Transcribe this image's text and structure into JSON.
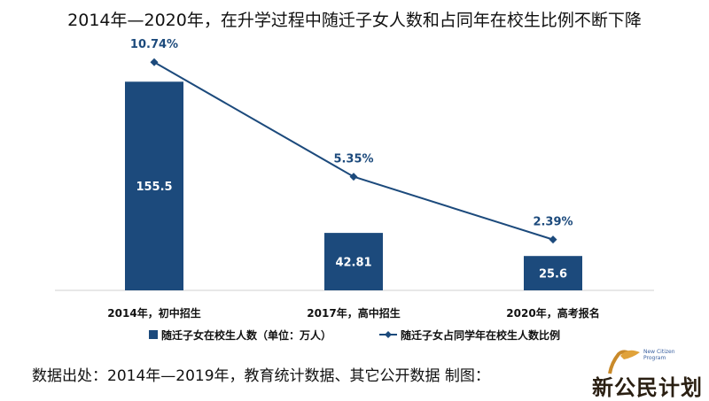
{
  "title": "2014年—2020年，在升学过程中随迁子女人数和占同年在校生比例不断下降",
  "source": "数据出处：2014年—2019年，教育统计数据、其它公开数据  制图：",
  "logo": {
    "text": "新公民计划",
    "subtext": "New Citizen Program"
  },
  "chart_data": {
    "type": "bar",
    "categories": [
      "2014年，初中招生",
      "2017年，高中招生",
      "2020年，高考报名"
    ],
    "series": [
      {
        "name": "随迁子女在校生人数（单位：万人）",
        "type": "bar",
        "values": [
          155.5,
          42.81,
          25.6
        ],
        "labels": [
          "155.5",
          "42.81",
          "25.6"
        ],
        "color": "#1c4a7c"
      },
      {
        "name": "随迁子女占同学年在校生人数比例",
        "type": "line",
        "values": [
          10.74,
          5.35,
          2.39
        ],
        "labels": [
          "10.74%",
          "5.35%",
          "2.39%"
        ],
        "color": "#1c4a7c"
      }
    ],
    "bar_axis": {
      "min": 0,
      "max": 190
    },
    "line_axis": {
      "min": 0,
      "max": 12
    },
    "legend_position": "bottom",
    "grid": false
  }
}
